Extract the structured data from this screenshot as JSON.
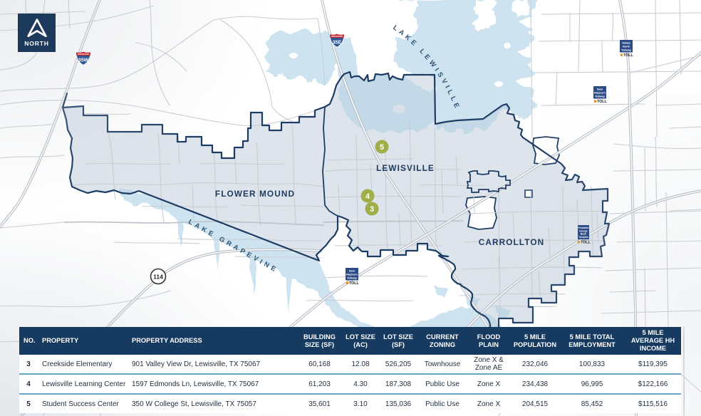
{
  "compass": {
    "label": "NORTH"
  },
  "map": {
    "city_labels": [
      {
        "name": "FLOWER MOUND"
      },
      {
        "name": "LEWISVILLE"
      },
      {
        "name": "CARROLLTON"
      }
    ],
    "lake_labels": [
      {
        "name": "LAKE LEWISVILLE"
      },
      {
        "name": "LAKE GRAPEVINE"
      }
    ],
    "highway_shields": [
      {
        "type": "interstate",
        "caption": "INTERSTATE",
        "label": "35W"
      },
      {
        "type": "interstate",
        "caption": "INTERSTATE",
        "label": "35E"
      },
      {
        "type": "state-circle",
        "label": "114"
      }
    ],
    "toll_signs": [
      {
        "lines": [
          "Dallas",
          "North",
          "Tollway"
        ],
        "toll": "TOLL"
      },
      {
        "lines": [
          "Sam",
          "Rayburn",
          "Tollway"
        ],
        "toll": "TOLL"
      },
      {
        "lines": [
          "Sam",
          "Rayburn",
          "Tollway"
        ],
        "toll": "TOLL"
      },
      {
        "lines": [
          "President",
          "George",
          "Bush",
          "Turnpike"
        ],
        "toll": "TOLL"
      }
    ],
    "markers": [
      {
        "number": "5"
      },
      {
        "number": "4"
      },
      {
        "number": "3"
      }
    ],
    "colors": {
      "navy": "#1d3c63",
      "lake_blue": "#d2e4ee",
      "trade_area_fill": "#dce2ea",
      "marker_olive": "#a0ae49",
      "interstate_blue": "#2e5596",
      "interstate_red": "#bf2c35",
      "toll_sign_blue": "#2b4a86",
      "road_gray": "#c9cdd3"
    }
  },
  "table": {
    "columns": [
      {
        "key": "no",
        "label": "NO."
      },
      {
        "key": "property",
        "label": "PROPERTY"
      },
      {
        "key": "address",
        "label": "PROPERTY ADDRESS"
      },
      {
        "key": "building_sf",
        "label": "BUILDING\nSIZE (SF)"
      },
      {
        "key": "lot_ac",
        "label": "LOT SIZE\n(AC)"
      },
      {
        "key": "lot_sf",
        "label": "LOT SIZE\n(SF)"
      },
      {
        "key": "zoning",
        "label": "CURRENT\nZONING"
      },
      {
        "key": "flood",
        "label": "FLOOD\nPLAIN"
      },
      {
        "key": "pop5",
        "label": "5 MILE\nPOPULATION"
      },
      {
        "key": "emp5",
        "label": "5 MILE TOTAL\nEMPLOYMENT"
      },
      {
        "key": "income5",
        "label": "5 MILE\nAVERAGE HH\nINCOME"
      }
    ],
    "rows": [
      {
        "no": "3",
        "property": "Creekside Elementary",
        "address": "901 Valley View Dr, Lewisville, TX 75067",
        "building_sf": "60,168",
        "lot_ac": "12.08",
        "lot_sf": "526,205",
        "zoning": "Townhouse",
        "flood": "Zone X &\nZone AE",
        "pop5": "232,046",
        "emp5": "100,833",
        "income5": "$119,395"
      },
      {
        "no": "4",
        "property": "Lewisville Learning Center",
        "address": "1597 Edmonds Ln, Lewisville, TX 75067",
        "building_sf": "61,203",
        "lot_ac": "4.30",
        "lot_sf": "187,308",
        "zoning": "Public Use",
        "flood": "Zone X",
        "pop5": "234,438",
        "emp5": "96,995",
        "income5": "$122,166"
      },
      {
        "no": "5",
        "property": "Student Success Center",
        "address": "350 W College St, Lewisville, TX 75057",
        "building_sf": "35,601",
        "lot_ac": "3.10",
        "lot_sf": "135,036",
        "zoning": "Public Use",
        "flood": "Zone X",
        "pop5": "204,515",
        "emp5": "85,452",
        "income5": "$115,516"
      }
    ]
  }
}
